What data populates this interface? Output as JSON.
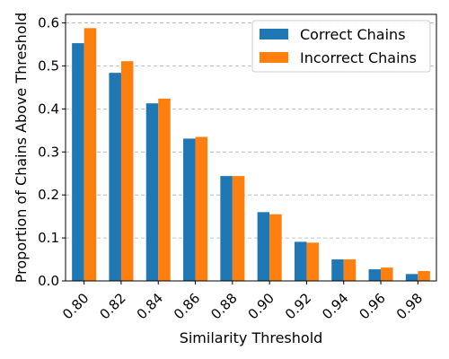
{
  "chart_data": {
    "type": "bar",
    "title": "",
    "xlabel": "Similarity Threshold",
    "ylabel": "Proportion of Chains Above Threshold",
    "categories": [
      "0.80",
      "0.82",
      "0.84",
      "0.86",
      "0.88",
      "0.90",
      "0.92",
      "0.94",
      "0.96",
      "0.98"
    ],
    "series": [
      {
        "name": "Correct Chains",
        "color": "#1f77b4",
        "values": [
          0.553,
          0.484,
          0.413,
          0.331,
          0.244,
          0.16,
          0.091,
          0.05,
          0.027,
          0.016
        ]
      },
      {
        "name": "Incorrect Chains",
        "color": "#ff7f0e",
        "values": [
          0.588,
          0.511,
          0.424,
          0.335,
          0.244,
          0.155,
          0.089,
          0.05,
          0.031,
          0.023
        ]
      }
    ],
    "ylim": [
      0,
      0.62
    ],
    "yticks": [
      "0.0",
      "0.1",
      "0.2",
      "0.3",
      "0.4",
      "0.5",
      "0.6"
    ],
    "grid": "y-dashed",
    "legend_position": "top-right",
    "x_tick_rotation": 45
  }
}
